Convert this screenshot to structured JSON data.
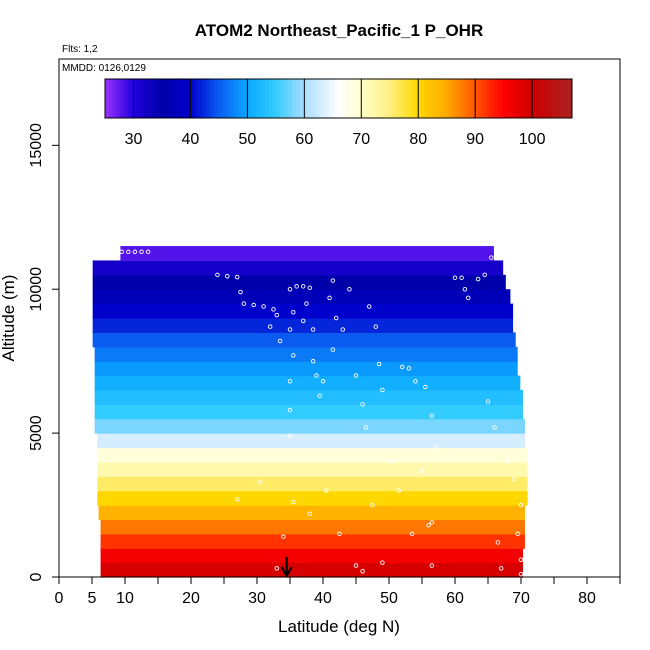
{
  "chart_data": {
    "type": "heatmap",
    "title": "ATOM2 Northeast_Pacific_1 P_OHR",
    "flights_note": "Flts: 1,2",
    "date_note": "MMDD: 0126,0129",
    "xlabel": "Latitude (deg N)",
    "ylabel": "Altitude (m)",
    "xlim": [
      0,
      85
    ],
    "ylim": [
      0,
      18000
    ],
    "x_ticks": [
      0,
      5,
      10,
      20,
      30,
      40,
      50,
      60,
      70,
      80
    ],
    "y_ticks": [
      0,
      5000,
      10000,
      15000
    ],
    "grid": false,
    "colorbar": {
      "range": [
        25,
        107
      ],
      "ticks": [
        30,
        40,
        50,
        60,
        70,
        80,
        90,
        100
      ],
      "stops": [
        {
          "v": 25,
          "c": "#9933ff"
        },
        {
          "v": 30,
          "c": "#2200dd"
        },
        {
          "v": 35,
          "c": "#0000aa"
        },
        {
          "v": 40,
          "c": "#0000cc"
        },
        {
          "v": 45,
          "c": "#0a5cf0"
        },
        {
          "v": 50,
          "c": "#0aa8ff"
        },
        {
          "v": 55,
          "c": "#33ccff"
        },
        {
          "v": 60,
          "c": "#aaddff"
        },
        {
          "v": 66,
          "c": "#ffffff"
        },
        {
          "v": 70,
          "c": "#ffffcc"
        },
        {
          "v": 75,
          "c": "#fff080"
        },
        {
          "v": 80,
          "c": "#ffd700"
        },
        {
          "v": 85,
          "c": "#ffaa00"
        },
        {
          "v": 90,
          "c": "#ff5500"
        },
        {
          "v": 95,
          "c": "#ff0000"
        },
        {
          "v": 100,
          "c": "#cc0000"
        },
        {
          "v": 107,
          "c": "#aa2222"
        }
      ]
    },
    "bands": [
      {
        "alt": [
          0,
          500
        ],
        "lat": [
          6.3,
          70.3
        ],
        "value": 99
      },
      {
        "alt": [
          500,
          1000
        ],
        "lat": [
          6.3,
          70.3
        ],
        "value": 96
      },
      {
        "alt": [
          1000,
          1500
        ],
        "lat": [
          6.3,
          70.6
        ],
        "value": 92
      },
      {
        "alt": [
          1500,
          2000
        ],
        "lat": [
          6.3,
          70.6
        ],
        "value": 88
      },
      {
        "alt": [
          2000,
          2500
        ],
        "lat": [
          6.0,
          70.6
        ],
        "value": 84
      },
      {
        "alt": [
          2500,
          3000
        ],
        "lat": [
          5.8,
          71.0
        ],
        "value": 80
      },
      {
        "alt": [
          3000,
          3500
        ],
        "lat": [
          5.8,
          71.0
        ],
        "value": 76
      },
      {
        "alt": [
          3500,
          4000
        ],
        "lat": [
          5.8,
          71.0
        ],
        "value": 72
      },
      {
        "alt": [
          4000,
          4500
        ],
        "lat": [
          5.8,
          71.0
        ],
        "value": 69
      },
      {
        "alt": [
          4500,
          5000
        ],
        "lat": [
          5.8,
          70.6
        ],
        "value": 63
      },
      {
        "alt": [
          5000,
          5500
        ],
        "lat": [
          5.4,
          70.6
        ],
        "value": 58
      },
      {
        "alt": [
          5500,
          6000
        ],
        "lat": [
          5.4,
          70.3
        ],
        "value": 55
      },
      {
        "alt": [
          6000,
          6500
        ],
        "lat": [
          5.4,
          70.3
        ],
        "value": 53
      },
      {
        "alt": [
          6500,
          7000
        ],
        "lat": [
          5.4,
          69.9
        ],
        "value": 51
      },
      {
        "alt": [
          7000,
          7500
        ],
        "lat": [
          5.4,
          69.5
        ],
        "value": 49
      },
      {
        "alt": [
          7500,
          8000
        ],
        "lat": [
          5.4,
          69.5
        ],
        "value": 47
      },
      {
        "alt": [
          8000,
          8500
        ],
        "lat": [
          5.1,
          69.2
        ],
        "value": 45
      },
      {
        "alt": [
          8500,
          9000
        ],
        "lat": [
          5.1,
          68.8
        ],
        "value": 42
      },
      {
        "alt": [
          9000,
          9500
        ],
        "lat": [
          5.1,
          68.8
        ],
        "value": 40
      },
      {
        "alt": [
          9500,
          10000
        ],
        "lat": [
          5.1,
          68.4
        ],
        "value": 37
      },
      {
        "alt": [
          10000,
          10500
        ],
        "lat": [
          5.1,
          67.7
        ],
        "value": 35
      },
      {
        "alt": [
          10500,
          11000
        ],
        "lat": [
          5.1,
          67.3
        ],
        "value": 32
      },
      {
        "alt": [
          11000,
          11500
        ],
        "lat": [
          9.3,
          65.9
        ],
        "value": 28
      }
    ],
    "points": [
      [
        9.5,
        11300
      ],
      [
        10.5,
        11300
      ],
      [
        11.5,
        11300
      ],
      [
        12.5,
        11300
      ],
      [
        13.5,
        11300
      ],
      [
        24.0,
        10500
      ],
      [
        25.5,
        10450
      ],
      [
        27.0,
        10420
      ],
      [
        28.0,
        9500
      ],
      [
        29.5,
        9450
      ],
      [
        31.0,
        9400
      ],
      [
        32.5,
        9300
      ],
      [
        33.0,
        9100
      ],
      [
        27.5,
        9900
      ],
      [
        32.0,
        8700
      ],
      [
        33.5,
        8200
      ],
      [
        35.0,
        10000
      ],
      [
        35.5,
        9200
      ],
      [
        35.0,
        8600
      ],
      [
        35.5,
        7700
      ],
      [
        35.0,
        6800
      ],
      [
        35.0,
        5800
      ],
      [
        35.0,
        4900
      ],
      [
        36.0,
        10100
      ],
      [
        37.0,
        10100
      ],
      [
        38.0,
        10050
      ],
      [
        37.5,
        9500
      ],
      [
        37.0,
        8900
      ],
      [
        38.5,
        8600
      ],
      [
        38.5,
        7500
      ],
      [
        39.0,
        7000
      ],
      [
        40.0,
        6800
      ],
      [
        39.5,
        6300
      ],
      [
        41.5,
        10300
      ],
      [
        41.0,
        9700
      ],
      [
        42.0,
        9000
      ],
      [
        41.5,
        7900
      ],
      [
        43.0,
        8600
      ],
      [
        44.0,
        10000
      ],
      [
        45.0,
        7000
      ],
      [
        46.0,
        6000
      ],
      [
        46.5,
        5200
      ],
      [
        47.0,
        9400
      ],
      [
        48.0,
        8700
      ],
      [
        48.5,
        7400
      ],
      [
        49.0,
        6500
      ],
      [
        52.0,
        7300
      ],
      [
        53.0,
        7250
      ],
      [
        54.0,
        6800
      ],
      [
        55.5,
        6600
      ],
      [
        56.5,
        5600
      ],
      [
        57.0,
        4500
      ],
      [
        55.0,
        3700
      ],
      [
        53.5,
        1500
      ],
      [
        56.0,
        1800
      ],
      [
        56.5,
        1900
      ],
      [
        60.0,
        10400
      ],
      [
        61.0,
        10400
      ],
      [
        61.5,
        10000
      ],
      [
        62.0,
        9700
      ],
      [
        63.5,
        10350
      ],
      [
        64.5,
        10500
      ],
      [
        65.5,
        11100
      ],
      [
        66.5,
        11150
      ],
      [
        67.5,
        11150
      ],
      [
        65.0,
        6100
      ],
      [
        66.0,
        5200
      ],
      [
        68.0,
        4000
      ],
      [
        69.0,
        3400
      ],
      [
        70.0,
        2500
      ],
      [
        69.5,
        1500
      ],
      [
        70.0,
        600
      ],
      [
        70.0,
        100
      ],
      [
        67.0,
        300
      ],
      [
        66.5,
        1200
      ],
      [
        45.0,
        400
      ],
      [
        46.0,
        200
      ],
      [
        42.5,
        1500
      ],
      [
        40.5,
        3000
      ],
      [
        38.0,
        2200
      ],
      [
        34.0,
        1400
      ],
      [
        33.0,
        300
      ],
      [
        27.0,
        2700
      ],
      [
        30.5,
        3300
      ],
      [
        47.5,
        2500
      ],
      [
        50.5,
        4000
      ],
      [
        51.5,
        3000
      ],
      [
        56.5,
        400
      ],
      [
        49.0,
        500
      ],
      [
        35.5,
        2600
      ]
    ],
    "annotations": [
      {
        "type": "arrow-down",
        "x": 34.5,
        "y_from": 700,
        "y_to": 0
      }
    ]
  }
}
